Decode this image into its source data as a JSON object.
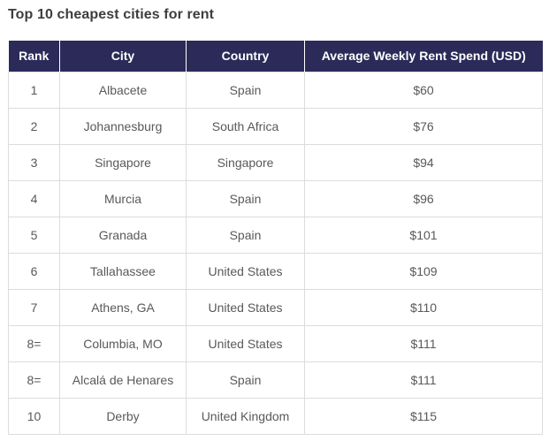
{
  "page": {
    "title": "Top 10 cheapest cities for rent"
  },
  "table": {
    "headers": [
      "Rank",
      "City",
      "Country",
      "Average Weekly Rent Spend (USD)"
    ],
    "columns": [
      "rank",
      "city",
      "country",
      "rent"
    ],
    "rows": [
      {
        "rank": "1",
        "city": "Albacete",
        "country": "Spain",
        "rent": "$60"
      },
      {
        "rank": "2",
        "city": "Johannesburg",
        "country": "South Africa",
        "rent": "$76"
      },
      {
        "rank": "3",
        "city": "Singapore",
        "country": "Singapore",
        "rent": "$94"
      },
      {
        "rank": "4",
        "city": "Murcia",
        "country": "Spain",
        "rent": "$96"
      },
      {
        "rank": "5",
        "city": "Granada",
        "country": "Spain",
        "rent": "$101"
      },
      {
        "rank": "6",
        "city": "Tallahassee",
        "country": "United States",
        "rent": "$109"
      },
      {
        "rank": "7",
        "city": "Athens, GA",
        "country": "United States",
        "rent": "$110"
      },
      {
        "rank": "8=",
        "city": "Columbia, MO",
        "country": "United States",
        "rent": "$111"
      },
      {
        "rank": "8=",
        "city": "Alcalá de Henares",
        "country": "Spain",
        "rent": "$111"
      },
      {
        "rank": "10",
        "city": "Derby",
        "country": "United Kingdom",
        "rent": "$115"
      }
    ]
  },
  "colors": {
    "header_bg": "#2b2a59",
    "header_text": "#ffffff",
    "body_text": "#595959",
    "border": "#dcdcdc",
    "title_text": "#3d3d3d"
  }
}
